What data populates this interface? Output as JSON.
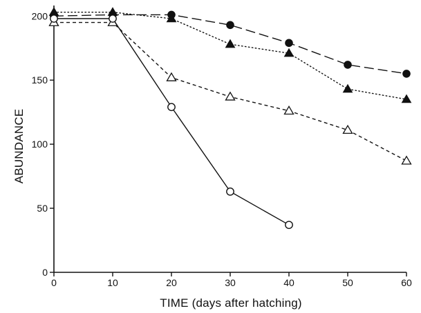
{
  "chart_data": {
    "type": "line",
    "title": "",
    "xlabel": "TIME (days after hatching)",
    "ylabel": "ABUNDANCE",
    "xlim": [
      0,
      60
    ],
    "ylim": [
      0,
      205
    ],
    "xticks": [
      0,
      10,
      20,
      30,
      40,
      50,
      60
    ],
    "yticks": [
      0,
      50,
      100,
      150,
      200
    ],
    "grid": false,
    "legend": "none",
    "series": [
      {
        "marker": "filled-circle",
        "line": "long-dash",
        "x": [
          0,
          10,
          20,
          30,
          40,
          50,
          60
        ],
        "y": [
          200,
          201,
          201,
          193,
          179,
          162,
          155
        ]
      },
      {
        "marker": "filled-triangle",
        "line": "dotted",
        "x": [
          0,
          10,
          20,
          30,
          40,
          50,
          60
        ],
        "y": [
          203,
          203,
          198,
          178,
          171,
          143,
          135
        ]
      },
      {
        "marker": "open-triangle",
        "line": "short-dash",
        "x": [
          0,
          10,
          20,
          30,
          40,
          50,
          60
        ],
        "y": [
          195,
          195,
          152,
          137,
          126,
          111,
          87
        ]
      },
      {
        "marker": "open-circle",
        "line": "solid",
        "x": [
          0,
          10,
          20,
          30,
          40
        ],
        "y": [
          198,
          198,
          129,
          63,
          37
        ]
      }
    ]
  }
}
